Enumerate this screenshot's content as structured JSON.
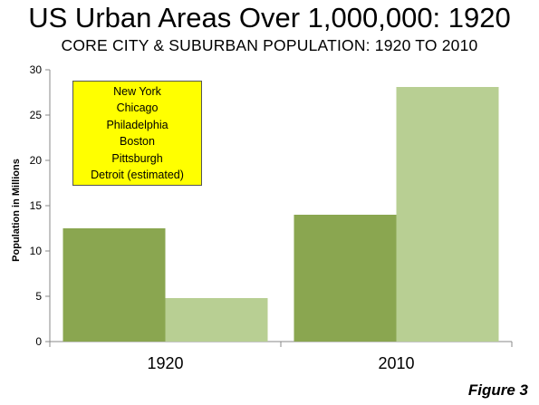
{
  "title": "US Urban Areas Over 1,000,000: 1920",
  "subtitle": "CORE CITY & SUBURBAN POPULATION: 1920 TO 2010",
  "figure_label": "Figure 3",
  "legend_box": {
    "lines": [
      "New York",
      "Chicago",
      "Philadelphia",
      "Boston",
      "Pittsburgh",
      "Detroit (estimated)"
    ]
  },
  "chart_data": {
    "type": "bar",
    "categories": [
      "1920",
      "2010"
    ],
    "series": [
      {
        "values": [
          12.5,
          14.0
        ],
        "color": "#8aa650"
      },
      {
        "values": [
          4.8,
          28.1
        ],
        "color": "#b8cf93"
      }
    ],
    "ylabel": "Population in Millions",
    "ylim": [
      0,
      30
    ],
    "yticks": [
      0,
      5,
      10,
      15,
      20,
      25,
      30
    ],
    "grid": false
  }
}
